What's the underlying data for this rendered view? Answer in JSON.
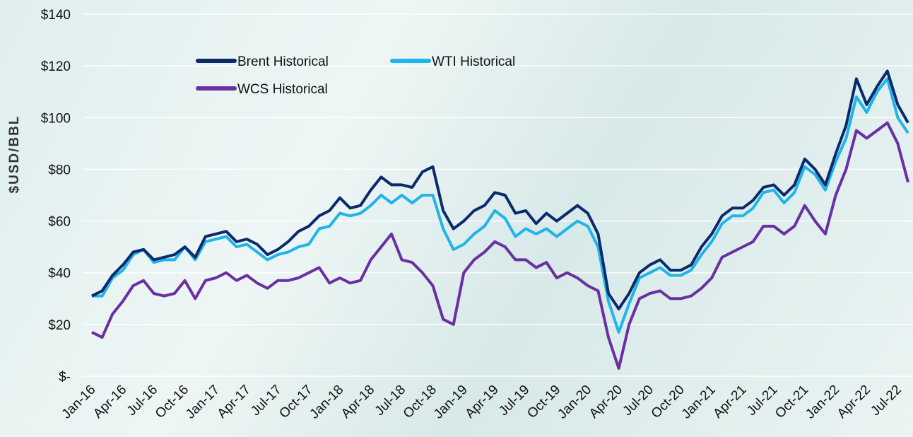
{
  "chart_data": {
    "type": "line",
    "y_label": "$USD/BBL",
    "x": [
      "Jan-16",
      "Feb-16",
      "Mar-16",
      "Apr-16",
      "May-16",
      "Jun-16",
      "Jul-16",
      "Aug-16",
      "Sep-16",
      "Oct-16",
      "Nov-16",
      "Dec-16",
      "Jan-17",
      "Feb-17",
      "Mar-17",
      "Apr-17",
      "May-17",
      "Jun-17",
      "Jul-17",
      "Aug-17",
      "Sep-17",
      "Oct-17",
      "Nov-17",
      "Dec-17",
      "Jan-18",
      "Feb-18",
      "Mar-18",
      "Apr-18",
      "May-18",
      "Jun-18",
      "Jul-18",
      "Aug-18",
      "Sep-18",
      "Oct-18",
      "Nov-18",
      "Dec-18",
      "Jan-19",
      "Feb-19",
      "Mar-19",
      "Apr-19",
      "May-19",
      "Jun-19",
      "Jul-19",
      "Aug-19",
      "Sep-19",
      "Oct-19",
      "Nov-19",
      "Dec-19",
      "Jan-20",
      "Feb-20",
      "Mar-20",
      "Apr-20",
      "May-20",
      "Jun-20",
      "Jul-20",
      "Aug-20",
      "Sep-20",
      "Oct-20",
      "Nov-20",
      "Dec-20",
      "Jan-21",
      "Feb-21",
      "Mar-21",
      "Apr-21",
      "May-21",
      "Jun-21",
      "Jul-21",
      "Aug-21",
      "Sep-21",
      "Oct-21",
      "Nov-21",
      "Dec-21",
      "Jan-22",
      "Feb-22",
      "Mar-22",
      "Apr-22",
      "May-22",
      "Jun-22",
      "Jul-22",
      "Aug-22"
    ],
    "series": [
      {
        "name": "Brent Historical",
        "color": "#0b2a6b",
        "values": [
          31,
          33,
          39,
          43,
          48,
          49,
          45,
          46,
          47,
          50,
          46,
          54,
          55,
          56,
          52,
          53,
          51,
          47,
          49,
          52,
          56,
          58,
          62,
          64,
          69,
          65,
          66,
          72,
          77,
          74,
          74,
          73,
          79,
          81,
          64,
          57,
          60,
          64,
          66,
          71,
          70,
          63,
          64,
          59,
          63,
          60,
          63,
          66,
          63,
          55,
          32,
          26,
          32,
          40,
          43,
          45,
          41,
          41,
          43,
          50,
          55,
          62,
          65,
          65,
          68,
          73,
          74,
          70,
          74,
          84,
          80,
          74,
          86,
          97,
          115,
          105,
          112,
          118,
          105,
          98
        ]
      },
      {
        "name": "WTI Historical",
        "color": "#1fb4ea",
        "values": [
          31,
          31,
          38,
          41,
          47,
          49,
          44,
          45,
          45,
          50,
          45,
          52,
          53,
          54,
          50,
          51,
          48,
          45,
          47,
          48,
          50,
          51,
          57,
          58,
          63,
          62,
          63,
          66,
          70,
          67,
          70,
          67,
          70,
          70,
          57,
          49,
          51,
          55,
          58,
          64,
          61,
          54,
          57,
          55,
          57,
          54,
          57,
          60,
          58,
          50,
          29,
          17,
          28,
          38,
          40,
          42,
          39,
          39,
          41,
          47,
          52,
          59,
          62,
          62,
          65,
          71,
          72,
          67,
          71,
          81,
          78,
          72,
          83,
          92,
          108,
          102,
          110,
          115,
          100,
          94
        ]
      },
      {
        "name": "WCS Historical",
        "color": "#6a2fa0",
        "values": [
          17,
          15,
          24,
          29,
          35,
          37,
          32,
          31,
          32,
          37,
          30,
          37,
          38,
          40,
          37,
          39,
          36,
          34,
          37,
          37,
          38,
          40,
          42,
          36,
          38,
          36,
          37,
          45,
          50,
          55,
          45,
          44,
          40,
          35,
          22,
          20,
          40,
          45,
          48,
          52,
          50,
          45,
          45,
          42,
          44,
          38,
          40,
          38,
          35,
          33,
          15,
          3,
          20,
          30,
          32,
          33,
          30,
          30,
          31,
          34,
          38,
          46,
          48,
          50,
          52,
          58,
          58,
          55,
          58,
          66,
          60,
          55,
          70,
          80,
          95,
          92,
          95,
          98,
          90,
          75
        ]
      }
    ],
    "ylim": [
      0,
      140
    ],
    "yticks": [
      {
        "value": 0,
        "label": "$-"
      },
      {
        "value": 20,
        "label": "$20"
      },
      {
        "value": 40,
        "label": "$40"
      },
      {
        "value": 60,
        "label": "$60"
      },
      {
        "value": 80,
        "label": "$80"
      },
      {
        "value": 100,
        "label": "$100"
      },
      {
        "value": 120,
        "label": "$120"
      },
      {
        "value": 140,
        "label": "$140"
      }
    ],
    "grid": true
  }
}
